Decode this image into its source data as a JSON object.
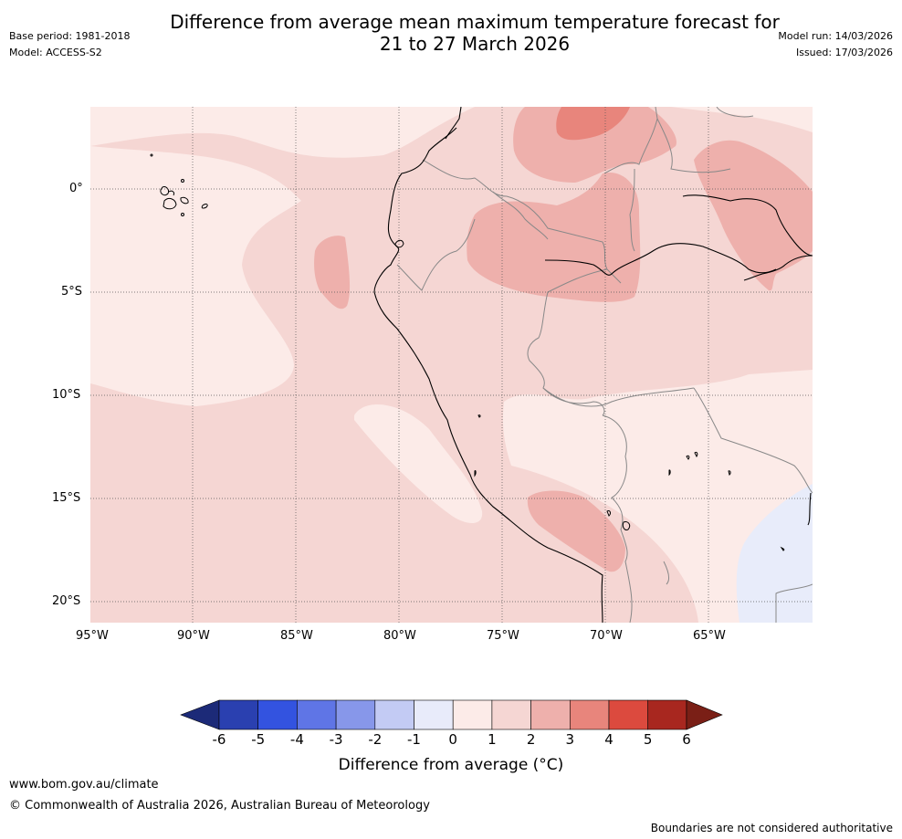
{
  "header": {
    "title_line1": "Difference from average mean maximum temperature forecast for",
    "title_line2": "21 to 27 March 2026",
    "base_period": "Base period: 1981-2018",
    "model": "Model: ACCESS-S2",
    "model_run": "Model run: 14/03/2026",
    "issued": "Issued: 17/03/2026"
  },
  "map": {
    "lon_labels": [
      "95°W",
      "90°W",
      "85°W",
      "80°W",
      "75°W",
      "70°W",
      "65°W"
    ],
    "lat_labels": [
      "0°",
      "5°S",
      "10°S",
      "15°S",
      "20°S"
    ],
    "colors": {
      "c_1_2": "#fcebe8",
      "c_2_3": "#f5d6d3",
      "c_3_4": "#eeb0ac",
      "c_4_5": "#e8857c",
      "c_m1_0": "#e8ecfa",
      "border": "#888888",
      "coast": "#000000"
    }
  },
  "colorbar": {
    "title": "Difference from average (°C)",
    "ticks": [
      "-6",
      "-5",
      "-4",
      "-3",
      "-2",
      "-1",
      "0",
      "1",
      "2",
      "3",
      "4",
      "5",
      "6"
    ],
    "colors": [
      "#1c2a78",
      "#2a40b0",
      "#3353e0",
      "#5f75e6",
      "#8797ea",
      "#c3cbf4",
      "#e8ebfa",
      "#fcebe8",
      "#f5d6d3",
      "#eeb0ac",
      "#e8857c",
      "#dc4a3e",
      "#a8271f",
      "#7a1f16"
    ]
  },
  "footer": {
    "url": "www.bom.gov.au/climate",
    "copyright": "© Commonwealth of Australia 2026, Australian Bureau of Meteorology",
    "disclaimer": "Boundaries are not considered authoritative"
  }
}
